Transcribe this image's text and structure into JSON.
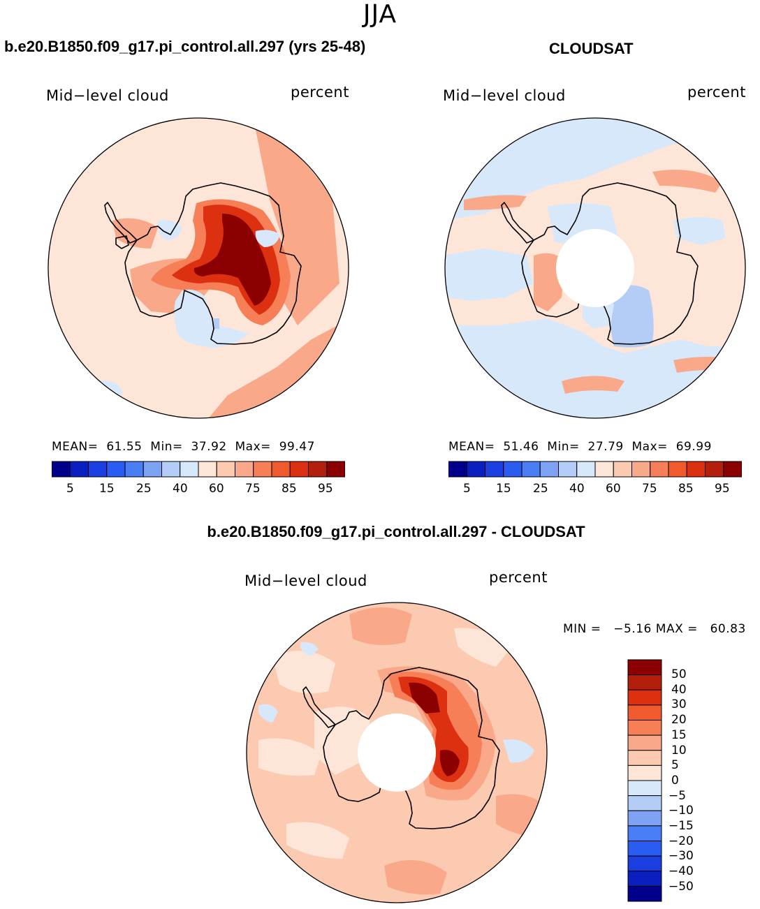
{
  "season": "JJA",
  "panels": [
    {
      "title": "b.e20.B1850.f09_g17.pi_control.all.297 (yrs 25-48)",
      "left_label": "Mid−level cloud",
      "right_label": "percent",
      "stats": {
        "mean_label": "MEAN=",
        "mean": "61.55",
        "min_label": "Min=",
        "min": "37.92",
        "max_label": "Max=",
        "max": "99.47"
      }
    },
    {
      "title": "CLOUDSAT",
      "left_label": "Mid−level cloud",
      "right_label": "percent",
      "stats": {
        "mean_label": "MEAN=",
        "mean": "51.46",
        "min_label": "Min=",
        "min": "27.79",
        "max_label": "Max=",
        "max": "69.99"
      }
    }
  ],
  "diff_panel": {
    "title": "b.e20.B1850.f09_g17.pi_control.all.297 - CLOUDSAT",
    "left_label": "Mid−level cloud",
    "right_label": "percent",
    "stats": {
      "min_label": "MIN =",
      "min": "−5.16",
      "max_label": "MAX =",
      "max": "60.83"
    }
  },
  "horizontal_colorbar": {
    "colors": [
      "#00008b",
      "#0a1fbf",
      "#1a3ee0",
      "#2a5cf2",
      "#4a7ef6",
      "#7ea3f5",
      "#b4cdf7",
      "#d8e8fb",
      "#fde5d8",
      "#fbcab0",
      "#f9a98a",
      "#f67f58",
      "#f05a2d",
      "#dd3011",
      "#b41e0c",
      "#8b0000"
    ],
    "ticks": [
      "5",
      "15",
      "25",
      "40",
      "60",
      "75",
      "85",
      "95"
    ]
  },
  "vertical_colorbar": {
    "colors_top_to_bottom": [
      "#8b0000",
      "#b41e0c",
      "#dd3011",
      "#f05a2d",
      "#f67f58",
      "#f9a98a",
      "#fbcab0",
      "#fde5d8",
      "#d8e8fb",
      "#b4cdf7",
      "#7ea3f5",
      "#4a7ef6",
      "#2a5cf2",
      "#1a3ee0",
      "#0a1fbf",
      "#00008b"
    ],
    "ticks": [
      "50",
      "40",
      "30",
      "20",
      "15",
      "10",
      "5",
      "0",
      "−5",
      "−10",
      "−15",
      "−20",
      "−30",
      "−40",
      "−50"
    ]
  },
  "map_colors": {
    "model_background": "#fde5d8",
    "cloudsat_background": "#fde5d8",
    "diff_background": "#fbcab0",
    "light_blue": "#d8e8fb",
    "mid_blue": "#b4cdf7",
    "deep_blue": "#7ea3f5",
    "salmon": "#f9a98a",
    "orange": "#f67f58",
    "red": "#dd3011",
    "dark_red": "#8b0000",
    "coast": "#000000"
  }
}
